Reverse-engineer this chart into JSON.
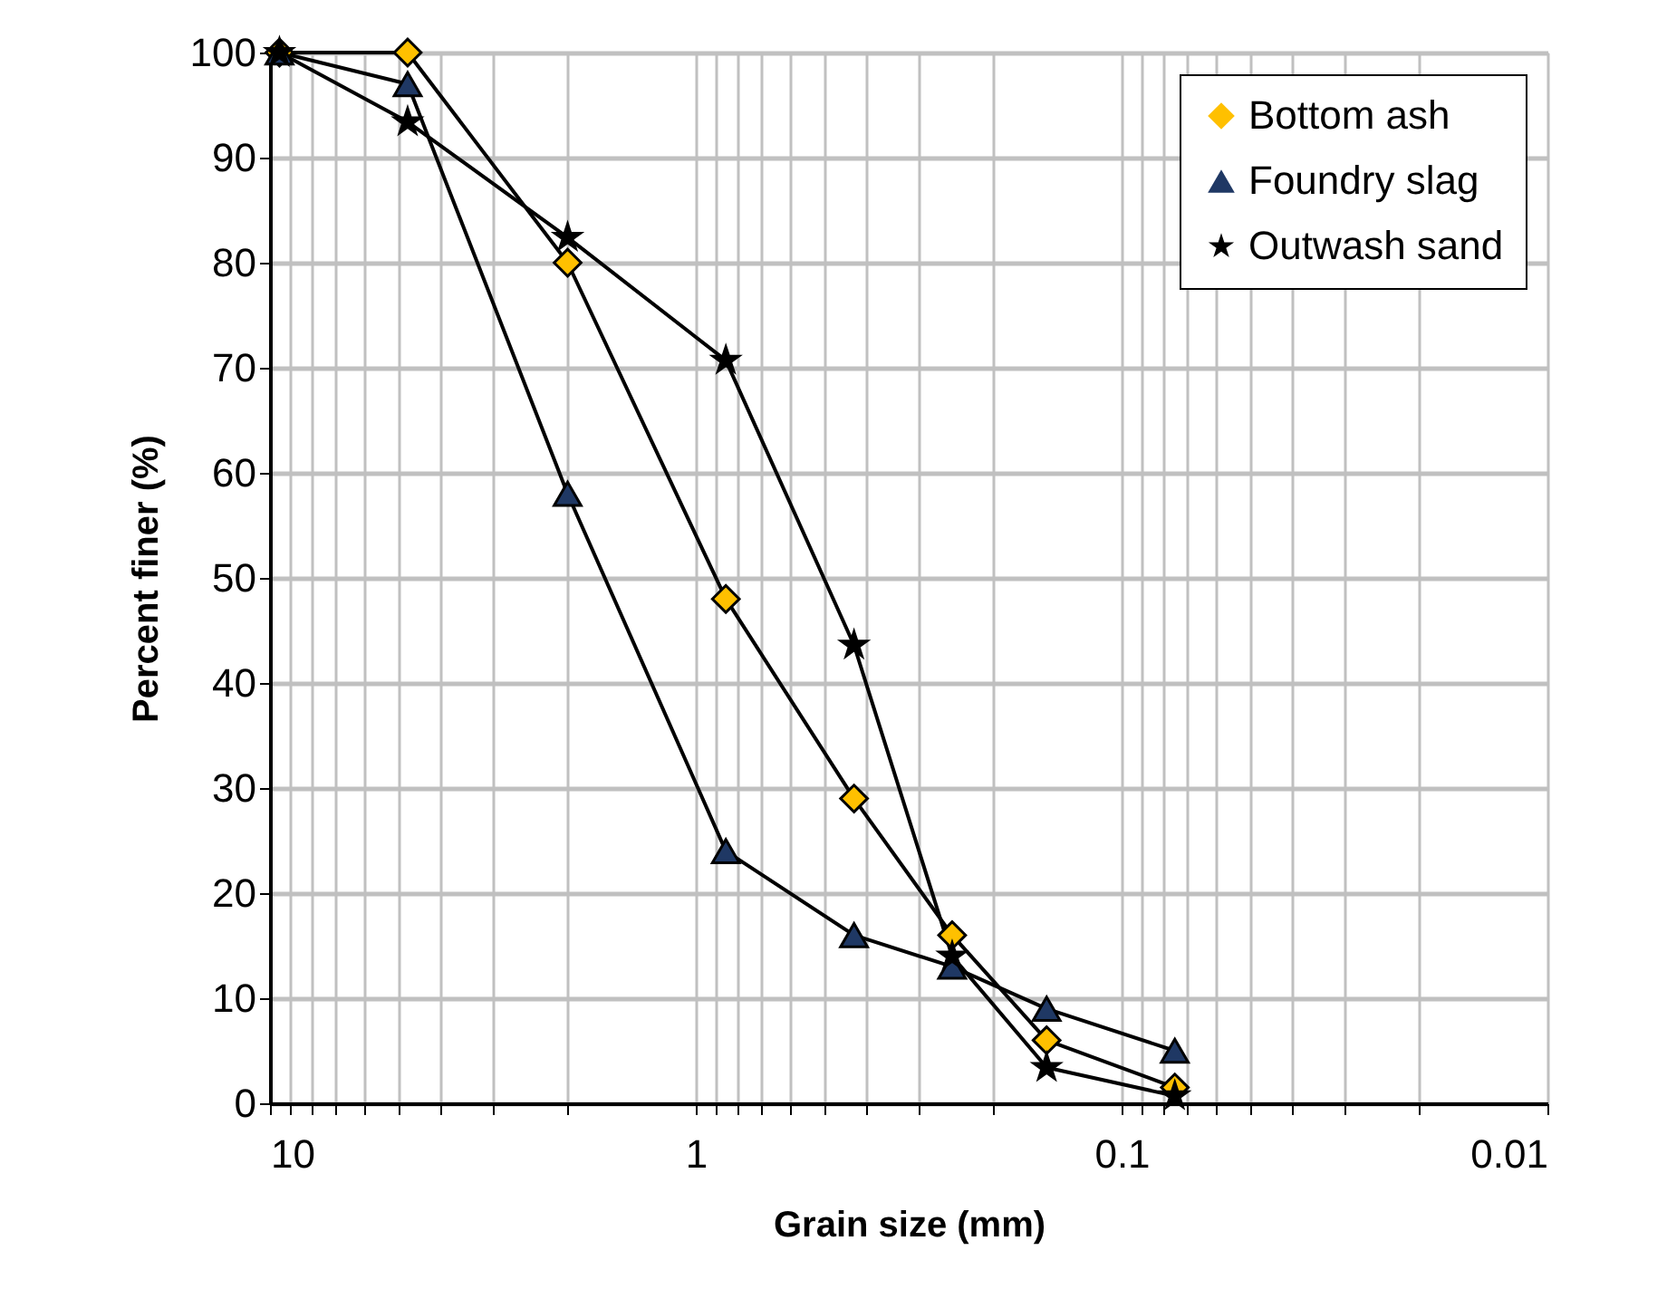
{
  "chart_data": {
    "type": "line",
    "xlabel": "Grain size (mm)",
    "ylabel": "Percent finer (%)",
    "x": [
      9.5,
      4.75,
      2.0,
      0.85,
      0.425,
      0.25,
      0.15,
      0.075
    ],
    "series": [
      {
        "name": "Bottom ash",
        "color": "#ffc000",
        "marker": "diamond",
        "values": [
          100,
          100,
          80,
          48,
          29,
          16,
          6,
          1.5
        ]
      },
      {
        "name": "Foundry slag",
        "color": "#1f3864",
        "marker": "triangle",
        "values": [
          100,
          97,
          58,
          24,
          16,
          13,
          9,
          5
        ]
      },
      {
        "name": "Outwash sand",
        "color": "#000000",
        "marker": "star",
        "values": [
          100,
          93.4,
          82.4,
          70.7,
          43.6,
          14,
          3.4,
          0.7
        ]
      }
    ],
    "log": "x",
    "xlim": [
      10,
      0.01
    ],
    "xticks": [
      10,
      {
        "value": 9,
        "label": null
      },
      {
        "value": 8,
        "label": null
      },
      {
        "value": 7,
        "label": null
      },
      {
        "value": 6,
        "label": null
      },
      {
        "value": 5,
        "label": null
      },
      {
        "value": 4,
        "label": null
      },
      {
        "value": 3,
        "label": null
      },
      {
        "value": 2,
        "label": null
      },
      1,
      {
        "value": 0.9,
        "label": null
      },
      {
        "value": 0.8,
        "label": null
      },
      {
        "value": 0.7,
        "label": null
      },
      {
        "value": 0.6,
        "label": null
      },
      {
        "value": 0.5,
        "label": null
      },
      {
        "value": 0.4,
        "label": null
      },
      {
        "value": 0.3,
        "label": null
      },
      {
        "value": 0.2,
        "label": null
      },
      0.1,
      {
        "value": 0.09,
        "label": null
      },
      {
        "value": 0.08,
        "label": null
      },
      {
        "value": 0.07,
        "label": null
      },
      {
        "value": 0.06,
        "label": null
      },
      {
        "value": 0.05,
        "label": null
      },
      {
        "value": 0.04,
        "label": null
      },
      {
        "value": 0.03,
        "label": null
      },
      {
        "value": 0.02,
        "label": null
      },
      0.01
    ],
    "ylim": [
      0,
      100
    ],
    "yticks": [
      0,
      10,
      20,
      30,
      40,
      50,
      60,
      70,
      80,
      90,
      100
    ],
    "grid": true,
    "legend": "top right",
    "line_style": "solid"
  }
}
